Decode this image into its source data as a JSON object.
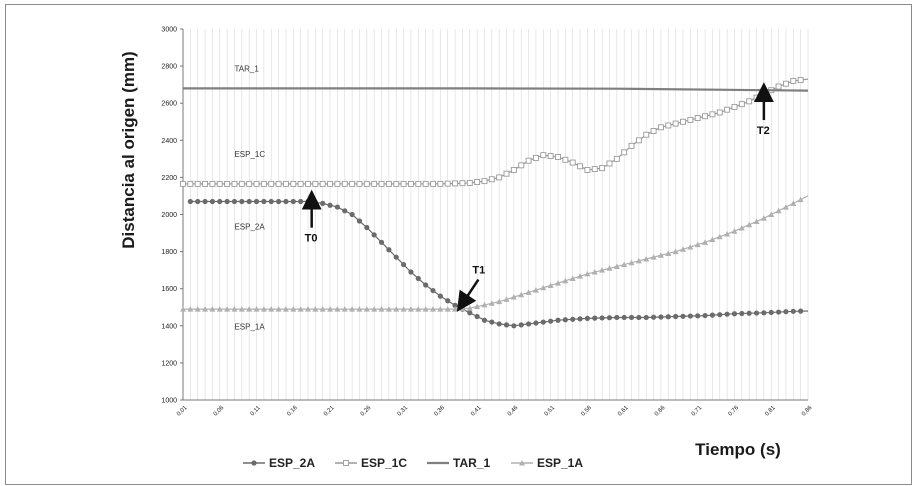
{
  "chart_data": {
    "type": "line",
    "title": "",
    "xlabel": "Tiempo (s)",
    "ylabel": "Distancia al origen (mm)",
    "ylim": [
      1000,
      3000
    ],
    "yticks": [
      1000,
      1200,
      1400,
      1600,
      1800,
      2000,
      2200,
      2400,
      2600,
      2800,
      3000
    ],
    "xlim": [
      0.01,
      0.86
    ],
    "xticks": [
      "0,01",
      "0,06",
      "0,11",
      "0,16",
      "0,21",
      "0,26",
      "0,31",
      "0,36",
      "0,41",
      "0,46",
      "0,51",
      "0,56",
      "0,61",
      "0,66",
      "0,71",
      "0,76",
      "0,81",
      "0,86"
    ],
    "grid": "vertical",
    "legend_position": "bottom",
    "series": [
      {
        "name": "ESP_2A",
        "color": "#6b6b6b",
        "marker": "circle",
        "label": "ESP_2A",
        "x": [
          0.02,
          0.06,
          0.1,
          0.14,
          0.18,
          0.2,
          0.22,
          0.24,
          0.26,
          0.28,
          0.3,
          0.32,
          0.34,
          0.36,
          0.38,
          0.4,
          0.42,
          0.44,
          0.46,
          0.48,
          0.5,
          0.52,
          0.56,
          0.6,
          0.64,
          0.68,
          0.72,
          0.76,
          0.8,
          0.84,
          0.86
        ],
        "values": [
          2070,
          2070,
          2070,
          2070,
          2070,
          2060,
          2040,
          2000,
          1930,
          1850,
          1770,
          1690,
          1620,
          1560,
          1510,
          1470,
          1430,
          1410,
          1400,
          1410,
          1420,
          1430,
          1440,
          1445,
          1445,
          1450,
          1455,
          1465,
          1470,
          1478,
          1480
        ]
      },
      {
        "name": "ESP_1C",
        "color": "#9a9a9a",
        "marker": "square-open",
        "label": "ESP_1C",
        "x": [
          0.01,
          0.1,
          0.2,
          0.3,
          0.36,
          0.4,
          0.42,
          0.44,
          0.46,
          0.48,
          0.5,
          0.52,
          0.54,
          0.56,
          0.58,
          0.6,
          0.62,
          0.64,
          0.66,
          0.7,
          0.74,
          0.78,
          0.8,
          0.82,
          0.84,
          0.86
        ],
        "values": [
          2165,
          2165,
          2165,
          2165,
          2165,
          2170,
          2180,
          2200,
          2240,
          2290,
          2320,
          2310,
          2280,
          2240,
          2250,
          2300,
          2370,
          2430,
          2470,
          2510,
          2550,
          2610,
          2650,
          2690,
          2720,
          2730
        ]
      },
      {
        "name": "TAR_1",
        "color": "#7f7f7f",
        "marker": "none",
        "label": "TAR_1",
        "x": [
          0.01,
          0.2,
          0.4,
          0.6,
          0.8,
          0.86
        ],
        "values": [
          2680,
          2680,
          2680,
          2678,
          2670,
          2668
        ]
      },
      {
        "name": "ESP_1A",
        "color": "#b0b0b0",
        "marker": "triangle",
        "label": "ESP_1A",
        "x": [
          0.01,
          0.1,
          0.2,
          0.3,
          0.36,
          0.38,
          0.4,
          0.44,
          0.48,
          0.52,
          0.56,
          0.6,
          0.64,
          0.68,
          0.72,
          0.76,
          0.8,
          0.84,
          0.86
        ],
        "values": [
          1490,
          1490,
          1490,
          1490,
          1490,
          1490,
          1495,
          1530,
          1580,
          1630,
          1680,
          1720,
          1760,
          1800,
          1850,
          1910,
          1980,
          2060,
          2100
        ]
      }
    ],
    "annotations": [
      {
        "text": "T0",
        "x": 0.185,
        "y": 2080,
        "dir": "up"
      },
      {
        "text": "T1",
        "x": 0.39,
        "y": 1520,
        "dir": "down-left"
      },
      {
        "text": "T2",
        "x": 0.8,
        "y": 2660,
        "dir": "up"
      }
    ],
    "series_labels": [
      {
        "text": "TAR_1",
        "x": 0.08,
        "y": 2770
      },
      {
        "text": "ESP_1C",
        "x": 0.08,
        "y": 2310
      },
      {
        "text": "ESP_2A",
        "x": 0.08,
        "y": 1920
      },
      {
        "text": "ESP_1A",
        "x": 0.08,
        "y": 1380
      }
    ]
  }
}
